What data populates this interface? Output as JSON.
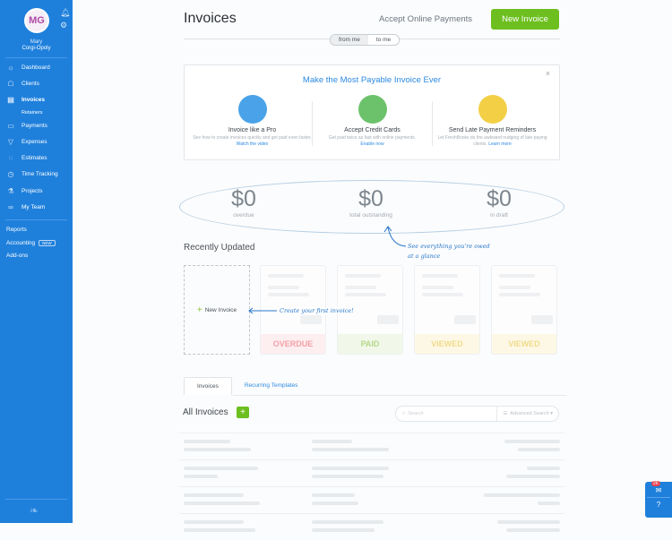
{
  "sidebar": {
    "avatar_initials": "MG",
    "user_name": "Mary",
    "company": "Corgi-Opoly",
    "items": [
      {
        "label": "Dashboard",
        "icon": "dashboard-icon"
      },
      {
        "label": "Clients",
        "icon": "clients-icon"
      },
      {
        "label": "Invoices",
        "icon": "invoices-icon",
        "active": true
      },
      {
        "label": "Payments",
        "icon": "payments-icon"
      },
      {
        "label": "Expenses",
        "icon": "expenses-icon"
      },
      {
        "label": "Estimates",
        "icon": "estimates-icon"
      },
      {
        "label": "Time Tracking",
        "icon": "timer-icon"
      },
      {
        "label": "Projects",
        "icon": "projects-icon"
      },
      {
        "label": "My Team",
        "icon": "team-icon"
      }
    ],
    "sub_item": "Retainers",
    "reports": "Reports",
    "accounting": "Accounting",
    "new_badge": "NEW",
    "addons": "Add-ons"
  },
  "header": {
    "title": "Invoices",
    "accept_payments": "Accept Online Payments",
    "new_invoice": "New Invoice",
    "toggle": [
      "from me",
      "to me"
    ]
  },
  "promo": {
    "title": "Make the Most Payable Invoice Ever",
    "close": "×",
    "columns": [
      {
        "heading": "Invoice like a Pro",
        "desc": "See how to create invoices quickly and get paid even faster.",
        "link": "Watch the video"
      },
      {
        "heading": "Accept Credit Cards",
        "desc": "Get paid twice as fast with online payments.",
        "link": "Enable now"
      },
      {
        "heading": "Send Late Payment Reminders",
        "desc": "Let FreshBooks do the awkward nudging of late-paying clients.",
        "link": "Learn more"
      }
    ]
  },
  "summary": [
    {
      "value": "$0",
      "label": "overdue"
    },
    {
      "value": "$0",
      "label": "total outstanding"
    },
    {
      "value": "$0",
      "label": "in draft"
    }
  ],
  "summary_note": "See everything you're owed at a glance",
  "recent": {
    "title": "Recently Updated",
    "new_invoice": "New Invoice",
    "note": "Create your first invoice!",
    "statuses": [
      {
        "label": "OVERDUE",
        "color": "#f2a0a8",
        "bg": "#fdeef0"
      },
      {
        "label": "PAID",
        "color": "#b6d88a",
        "bg": "#f1f8e9"
      },
      {
        "label": "VIEWED",
        "color": "#f1dc8a",
        "bg": "#fdf8e6"
      },
      {
        "label": "VIEWED",
        "color": "#f1dc8a",
        "bg": "#fdf8e6"
      }
    ]
  },
  "tabs": [
    "Invoices",
    "Recurring Templates"
  ],
  "list": {
    "title": "All Invoices",
    "add": "+",
    "search_placeholder": "Search",
    "advanced_search": "Advanced Search"
  },
  "chat": {
    "badge": "26"
  },
  "colors": {
    "sidebar": "#1f80dc",
    "accent_green": "#6cbf1f",
    "link_blue": "#2c8ae0"
  }
}
